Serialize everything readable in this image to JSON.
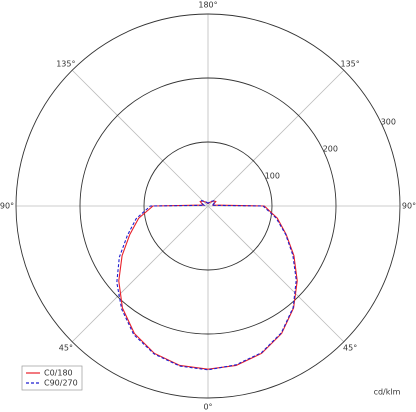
{
  "chart_data": {
    "type": "polar",
    "x": [
      -180,
      -170,
      -160,
      -150,
      -140,
      -130,
      -120,
      -110,
      -100,
      -90,
      -80,
      -70,
      -60,
      -50,
      -40,
      -30,
      -20,
      -10,
      0,
      10,
      20,
      30,
      40,
      50,
      60,
      70,
      80,
      90,
      100,
      110,
      120,
      130,
      140,
      150,
      160,
      170,
      180
    ],
    "series": [
      {
        "name": "C0/180",
        "color": "#e8202a",
        "dash": false,
        "values": [
          4,
          4,
          5,
          7,
          9,
          12,
          14,
          10,
          8,
          86,
          110,
          130,
          155,
          182,
          208,
          230,
          245,
          253,
          255,
          253,
          245,
          230,
          208,
          182,
          155,
          130,
          110,
          88,
          8,
          10,
          14,
          12,
          9,
          7,
          5,
          4,
          4
        ]
      },
      {
        "name": "C90/270",
        "color": "#1f1fd0",
        "dash": true,
        "values": [
          4,
          5,
          6,
          8,
          10,
          13,
          12,
          9,
          6,
          90,
          114,
          134,
          160,
          186,
          210,
          232,
          246,
          254,
          256,
          252,
          244,
          229,
          207,
          180,
          153,
          129,
          108,
          86,
          6,
          9,
          12,
          13,
          10,
          8,
          6,
          5,
          4
        ]
      }
    ],
    "rlim": [
      0,
      300
    ],
    "rticks": [
      100,
      200,
      300
    ],
    "xticks": [
      {
        "value": -135,
        "label": "135°"
      },
      {
        "value": -90,
        "label": "90°"
      },
      {
        "value": -45,
        "label": "45°"
      },
      {
        "value": 0,
        "label": "0°"
      },
      {
        "value": 45,
        "label": "45°"
      },
      {
        "value": 90,
        "label": "90°"
      },
      {
        "value": 135,
        "label": "135°"
      },
      {
        "value": 180,
        "label": "180°"
      }
    ],
    "unit_label": "cd/klm",
    "legend": "bottom-left"
  }
}
